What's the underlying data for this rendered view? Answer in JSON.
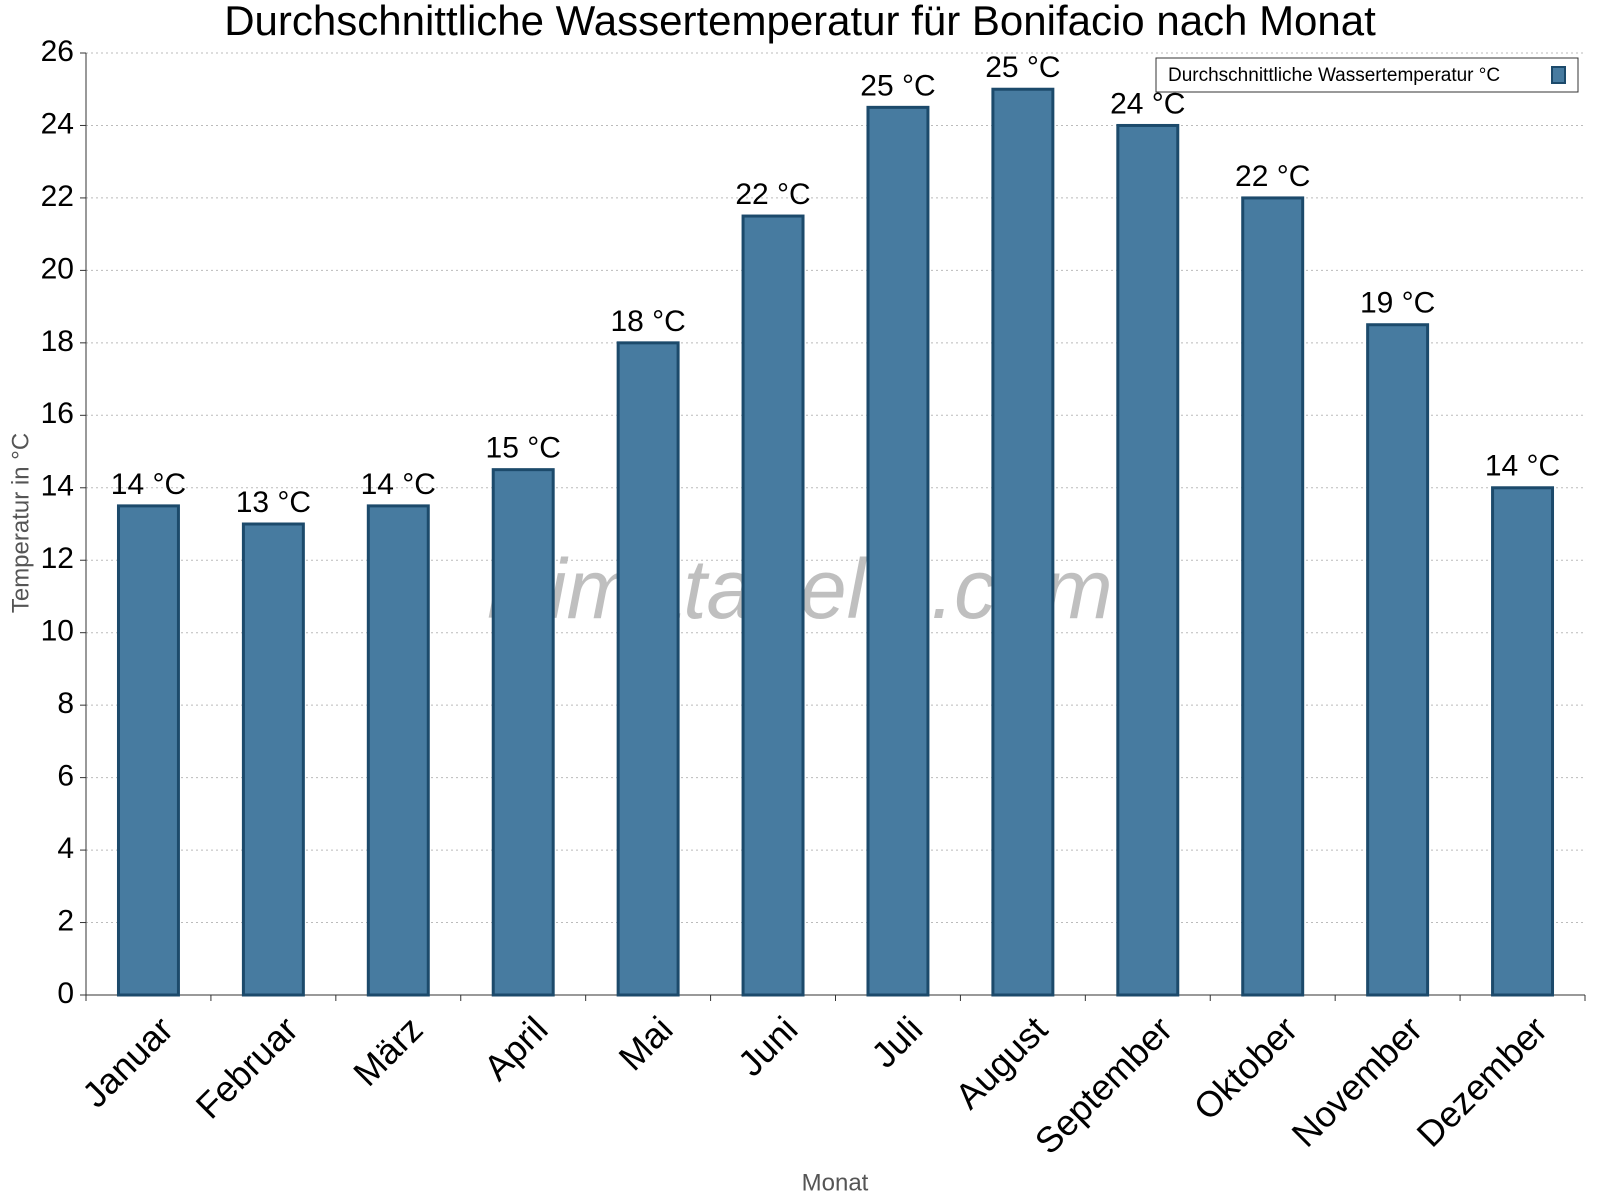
{
  "chart_data": {
    "type": "bar",
    "title": "Durchschnittliche Wassertemperatur für Bonifacio nach Monat",
    "x_label": "Monat",
    "y_label": "Temperatur in °C",
    "watermark": "klimatabelle.com",
    "categories": [
      "Januar",
      "Februar",
      "März",
      "April",
      "Mai",
      "Juni",
      "Juli",
      "August",
      "September",
      "Oktober",
      "November",
      "Dezember"
    ],
    "series": [
      {
        "name": "Durchschnittliche Wassertemperatur °C",
        "color": "#477ba0",
        "values": [
          13.5,
          13,
          13.5,
          14.5,
          18,
          21.5,
          24.5,
          25,
          24,
          22,
          18.5,
          14
        ],
        "value_labels": [
          "14 °C",
          "13 °C",
          "14 °C",
          "15 °C",
          "18 °C",
          "22 °C",
          "25 °C",
          "25 °C",
          "24 °C",
          "22 °C",
          "19 °C",
          "14 °C"
        ]
      }
    ],
    "ylim": [
      0,
      26
    ],
    "yticks": [
      0,
      2,
      4,
      6,
      8,
      10,
      12,
      14,
      16,
      18,
      20,
      22,
      24,
      26
    ],
    "grid": true,
    "legend": "top-right"
  }
}
